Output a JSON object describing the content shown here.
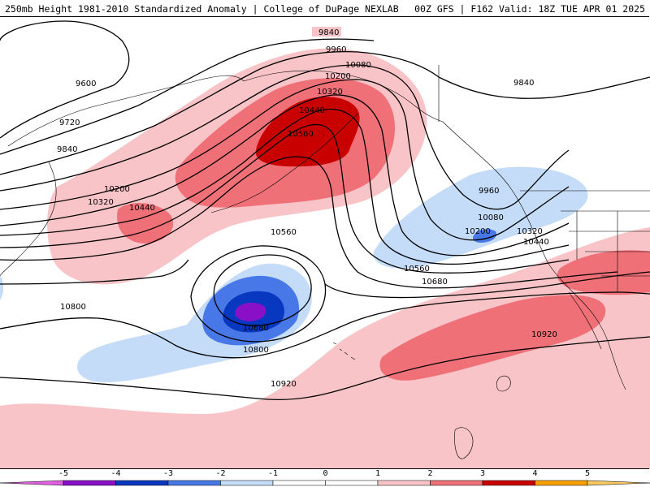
{
  "header": {
    "left_title": "250mb Height 1981-2010 Standardized Anomaly | College of DuPage NEXLAB",
    "right_title": "00Z GFS | F162 Valid: 18Z TUE APR 01 2025"
  },
  "colors": {
    "-5": "#e060e0",
    "-4": "#8a10c8",
    "-3": "#0838c0",
    "-2": "#4878e8",
    "-1": "#c4dcf8",
    "0": "#ffffff",
    "1": "#f8c4c8",
    "2": "#f07078",
    "3": "#c80000",
    "4": "#f8a000",
    "5": "#f8c860",
    "contour": "#000000",
    "coast": "#000000"
  },
  "contour_labels": {
    "c9840_a": "9840",
    "c9960_a": "9960",
    "c10080_a": "10080",
    "c10200_a": "10200",
    "c10320_a": "10320",
    "c10440_a": "10440",
    "c10560_a": "10560",
    "c9600": "9600",
    "c9720": "9720",
    "c9840_b": "9840",
    "c10200_b": "10200",
    "c10320_b": "10320",
    "c10440_b": "10440",
    "c9840_c": "9840",
    "c9960_b": "9960",
    "c10080_b": "10080",
    "c10200_c": "10200",
    "c10320_c": "10320",
    "c10440_c": "10440",
    "c10560_b": "10560",
    "c10560_c": "10560",
    "c10680_a": "10680",
    "c10680_b": "10680",
    "c10800_a": "10800",
    "c10800_b": "10800",
    "c10920_a": "10920",
    "c10920_b": "10920"
  },
  "colorbar": {
    "ticks": [
      "-5",
      "-4",
      "-3",
      "-2",
      "-1",
      "0",
      "1",
      "2",
      "3",
      "4",
      "5"
    ]
  }
}
